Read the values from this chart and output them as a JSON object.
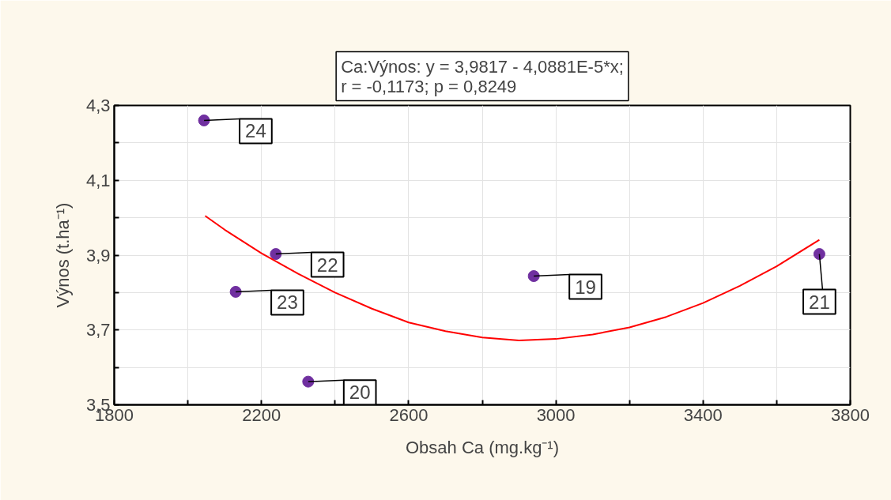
{
  "chart_data": {
    "type": "scatter",
    "title": "Ca:Výnos: y = 3,9817 - 4,0881E-5*x;\nr = -0,1173; p = 0,8249",
    "xlabel": "Obsah Ca (mg.kg⁻¹)",
    "ylabel": "Výnos (t.ha⁻¹)",
    "xlim": [
      1800,
      3800
    ],
    "ylim": [
      3.5,
      4.3
    ],
    "xticks": [
      1800,
      {
        "value": 2000,
        "label": null
      },
      2200,
      {
        "value": 2400,
        "label": null
      },
      2600,
      {
        "value": 2800,
        "label": null
      },
      3000,
      {
        "value": 3200,
        "label": null
      },
      3400,
      {
        "value": 3600,
        "label": null
      },
      3800
    ],
    "yticks": [
      {
        "value": 3.5,
        "label": "3,5"
      },
      {
        "value": 3.6,
        "label": null
      },
      {
        "value": 3.7,
        "label": "3,7"
      },
      {
        "value": 3.8,
        "label": null
      },
      {
        "value": 3.9,
        "label": "3,9"
      },
      {
        "value": 4.0,
        "label": null
      },
      {
        "value": 4.1,
        "label": "4,1"
      },
      {
        "value": 4.2,
        "label": null
      },
      {
        "value": 4.3,
        "label": "4,3"
      }
    ],
    "grid": true,
    "series": [
      {
        "marker": "circle",
        "color": "#7030a0",
        "x": [
          2044,
          2239,
          2130,
          2327,
          2940,
          3716
        ],
        "values": [
          4.26,
          3.903,
          3.802,
          3.562,
          3.844,
          3.903
        ]
      },
      {
        "type": "line",
        "marker": "none",
        "color": "#ff0000",
        "line_style": "solid",
        "x": [
          2047,
          2100,
          2200,
          2300,
          2400,
          2500,
          2600,
          2700,
          2800,
          2900,
          3000,
          3100,
          3200,
          3300,
          3400,
          3500,
          3600,
          3716
        ],
        "values": [
          4.005,
          3.968,
          3.905,
          3.85,
          3.8,
          3.757,
          3.72,
          3.697,
          3.68,
          3.672,
          3.676,
          3.688,
          3.707,
          3.735,
          3.772,
          3.818,
          3.87,
          3.941
        ]
      }
    ],
    "annotations": [
      {
        "text": "24",
        "x": 2044,
        "y": 4.26
      },
      {
        "text": "22",
        "x": 2239,
        "y": 3.903
      },
      {
        "text": "23",
        "x": 2130,
        "y": 3.802
      },
      {
        "text": "20",
        "x": 2327,
        "y": 3.562
      },
      {
        "text": "19",
        "x": 2940,
        "y": 3.844
      },
      {
        "text": "21",
        "x": 3716,
        "y": 3.903
      }
    ]
  }
}
